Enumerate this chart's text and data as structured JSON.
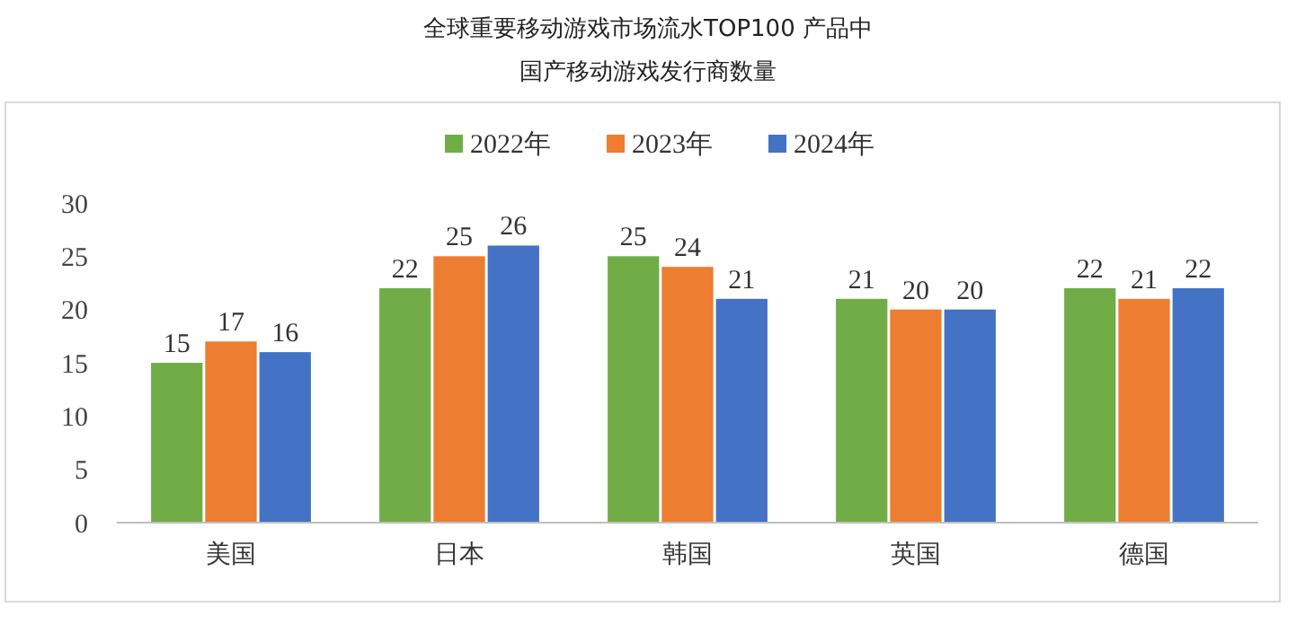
{
  "chart_data": {
    "type": "bar",
    "title": "全球重要移动游戏市场流水TOP100 产品中",
    "subtitle": "国产移动游戏发行商数量",
    "categories": [
      "美国",
      "日本",
      "韩国",
      "英国",
      "德国"
    ],
    "series": [
      {
        "name": "2022年",
        "color": "#70ad47",
        "values": [
          15,
          22,
          25,
          21,
          22
        ]
      },
      {
        "name": "2023年",
        "color": "#ed7d31",
        "values": [
          17,
          25,
          24,
          20,
          21
        ]
      },
      {
        "name": "2024年",
        "color": "#4472c4",
        "values": [
          16,
          26,
          21,
          20,
          22
        ]
      }
    ],
    "ylim": [
      0,
      30
    ],
    "yticks": [
      0,
      5,
      10,
      15,
      20,
      25,
      30
    ],
    "grid": false,
    "legend": "top",
    "data_labels": true
  }
}
